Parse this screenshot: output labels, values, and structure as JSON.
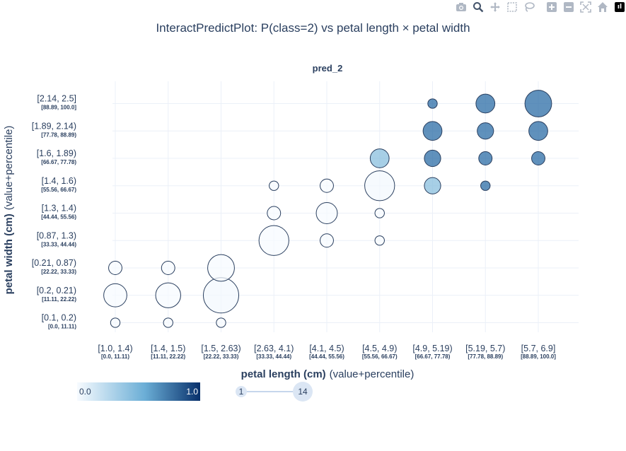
{
  "modebar": {
    "buttons": [
      "camera-icon",
      "zoom-icon",
      "pan-icon",
      "box-select-icon",
      "lasso-icon",
      "zoom-in-icon",
      "zoom-out-icon",
      "autoscale-icon",
      "reset-axes-icon",
      "plotly-logo-icon"
    ]
  },
  "title": "InteractPredictPlot: P(class=2) vs petal length × petal width",
  "chart_data": {
    "type": "scatter",
    "subplot_title": "pred_2",
    "xlabel_bold": "petal length (cm)",
    "xlabel_rest": "(value+percentile)",
    "ylabel_bold": "petal width (cm)",
    "ylabel_rest": "(value+percentile)",
    "x_categories": [
      {
        "value": "[1.0, 1.4)",
        "pct": "[0.0, 11.11)"
      },
      {
        "value": "[1.4, 1.5)",
        "pct": "[11.11, 22.22)"
      },
      {
        "value": "[1.5, 2.63)",
        "pct": "[22.22, 33.33)"
      },
      {
        "value": "[2.63, 4.1)",
        "pct": "[33.33, 44.44)"
      },
      {
        "value": "[4.1, 4.5)",
        "pct": "[44.44, 55.56)"
      },
      {
        "value": "[4.5, 4.9)",
        "pct": "[55.56, 66.67)"
      },
      {
        "value": "[4.9, 5.19)",
        "pct": "[66.67, 77.78)"
      },
      {
        "value": "[5.19, 5.7)",
        "pct": "[77.78, 88.89)"
      },
      {
        "value": "[5.7, 6.9]",
        "pct": "[88.89, 100.0]"
      }
    ],
    "y_categories": [
      {
        "value": "[0.1, 0.2)",
        "pct": "[0.0, 11.11)"
      },
      {
        "value": "[0.2, 0.21)",
        "pct": "[11.11, 22.22)"
      },
      {
        "value": "[0.21, 0.87)",
        "pct": "[22.22, 33.33)"
      },
      {
        "value": "[0.87, 1.3)",
        "pct": "[33.33, 44.44)"
      },
      {
        "value": "[1.3, 1.4)",
        "pct": "[44.44, 55.56)"
      },
      {
        "value": "[1.4, 1.6)",
        "pct": "[55.56, 66.67)"
      },
      {
        "value": "[1.6, 1.89)",
        "pct": "[66.67, 77.78)"
      },
      {
        "value": "[1.89, 2.14)",
        "pct": "[77.78, 88.89)"
      },
      {
        "value": "[2.14, 2.5]",
        "pct": "[88.89, 100.0]"
      }
    ],
    "points": [
      {
        "x": 0,
        "y": 0,
        "count": 1,
        "pred": 0.0
      },
      {
        "x": 0,
        "y": 1,
        "count": 6,
        "pred": 0.0
      },
      {
        "x": 0,
        "y": 2,
        "count": 2,
        "pred": 0.0
      },
      {
        "x": 1,
        "y": 0,
        "count": 1,
        "pred": 0.0
      },
      {
        "x": 1,
        "y": 1,
        "count": 7,
        "pred": 0.0
      },
      {
        "x": 1,
        "y": 2,
        "count": 2,
        "pred": 0.0
      },
      {
        "x": 2,
        "y": 0,
        "count": 1,
        "pred": 0.0
      },
      {
        "x": 2,
        "y": 1,
        "count": 14,
        "pred": 0.02
      },
      {
        "x": 2,
        "y": 2,
        "count": 8,
        "pred": 0.0
      },
      {
        "x": 3,
        "y": 3,
        "count": 10,
        "pred": 0.0
      },
      {
        "x": 3,
        "y": 4,
        "count": 2,
        "pred": 0.0
      },
      {
        "x": 3,
        "y": 5,
        "count": 1,
        "pred": 0.0
      },
      {
        "x": 4,
        "y": 3,
        "count": 2,
        "pred": 0.0
      },
      {
        "x": 4,
        "y": 4,
        "count": 5,
        "pred": 0.0
      },
      {
        "x": 4,
        "y": 5,
        "count": 2,
        "pred": 0.0
      },
      {
        "x": 5,
        "y": 3,
        "count": 1,
        "pred": 0.0
      },
      {
        "x": 5,
        "y": 4,
        "count": 1,
        "pred": 0.0
      },
      {
        "x": 5,
        "y": 5,
        "count": 10,
        "pred": 0.02
      },
      {
        "x": 5,
        "y": 6,
        "count": 4,
        "pred": 0.4
      },
      {
        "x": 6,
        "y": 5,
        "count": 3,
        "pred": 0.4
      },
      {
        "x": 6,
        "y": 6,
        "count": 3,
        "pred": 0.8
      },
      {
        "x": 6,
        "y": 7,
        "count": 4,
        "pred": 0.8
      },
      {
        "x": 6,
        "y": 8,
        "count": 1,
        "pred": 0.8
      },
      {
        "x": 7,
        "y": 5,
        "count": 1,
        "pred": 0.8
      },
      {
        "x": 7,
        "y": 6,
        "count": 2,
        "pred": 0.8
      },
      {
        "x": 7,
        "y": 7,
        "count": 3,
        "pred": 0.8
      },
      {
        "x": 7,
        "y": 8,
        "count": 4,
        "pred": 0.8
      },
      {
        "x": 8,
        "y": 6,
        "count": 2,
        "pred": 0.8
      },
      {
        "x": 8,
        "y": 7,
        "count": 4,
        "pred": 0.8
      },
      {
        "x": 8,
        "y": 8,
        "count": 8,
        "pred": 0.8
      }
    ],
    "colorscale": {
      "min_label": "0.0",
      "max_label": "1.0",
      "low_color": "#f7fbff",
      "mid_color": "#6baed6",
      "high_color": "#08306b"
    },
    "size_legend": {
      "min_label": "1",
      "max_label": "14"
    },
    "colors": {
      "grid": "#ebf0f8",
      "marker_line": "#2a3f5f",
      "text": "#2a3f5f",
      "pct_text": "#2a3f5f"
    }
  }
}
